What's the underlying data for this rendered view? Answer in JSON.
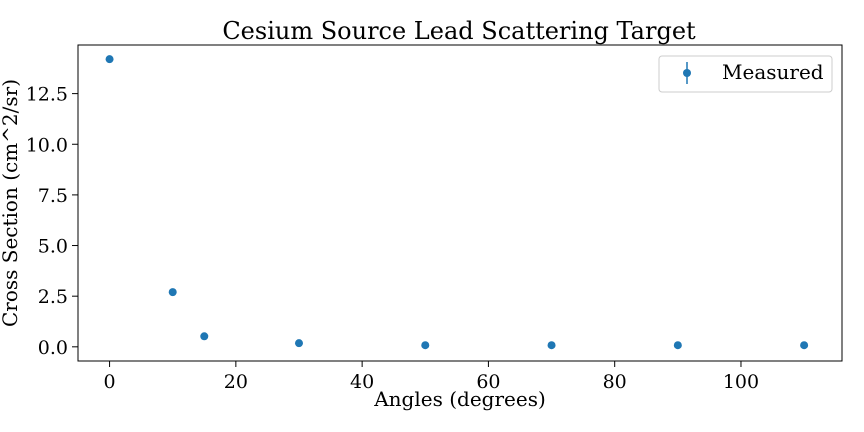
{
  "chart_data": {
    "type": "scatter",
    "title": "Cesium Source Lead Scattering Target",
    "xlabel": "Angles (degrees)",
    "ylabel": "Cross Section (cm^2/sr)",
    "xlim": [
      -5,
      116
    ],
    "ylim": [
      -0.7,
      14.9
    ],
    "x_ticks": [
      0,
      20,
      40,
      60,
      80,
      100
    ],
    "x_tick_labels": [
      "0",
      "20",
      "40",
      "60",
      "80",
      "100"
    ],
    "y_ticks": [
      0.0,
      2.5,
      5.0,
      7.5,
      10.0,
      12.5
    ],
    "y_tick_labels": [
      "0.0",
      "2.5",
      "5.0",
      "7.5",
      "10.0",
      "12.5"
    ],
    "grid": false,
    "legend_position": "top-right",
    "series": [
      {
        "name": "Measured",
        "color": "#1f77b4",
        "marker": "circle",
        "error_bars": true,
        "x": [
          0,
          10,
          15,
          30,
          50,
          70,
          90,
          110
        ],
        "y": [
          14.2,
          2.7,
          0.52,
          0.18,
          0.08,
          0.08,
          0.08,
          0.08
        ]
      }
    ]
  }
}
